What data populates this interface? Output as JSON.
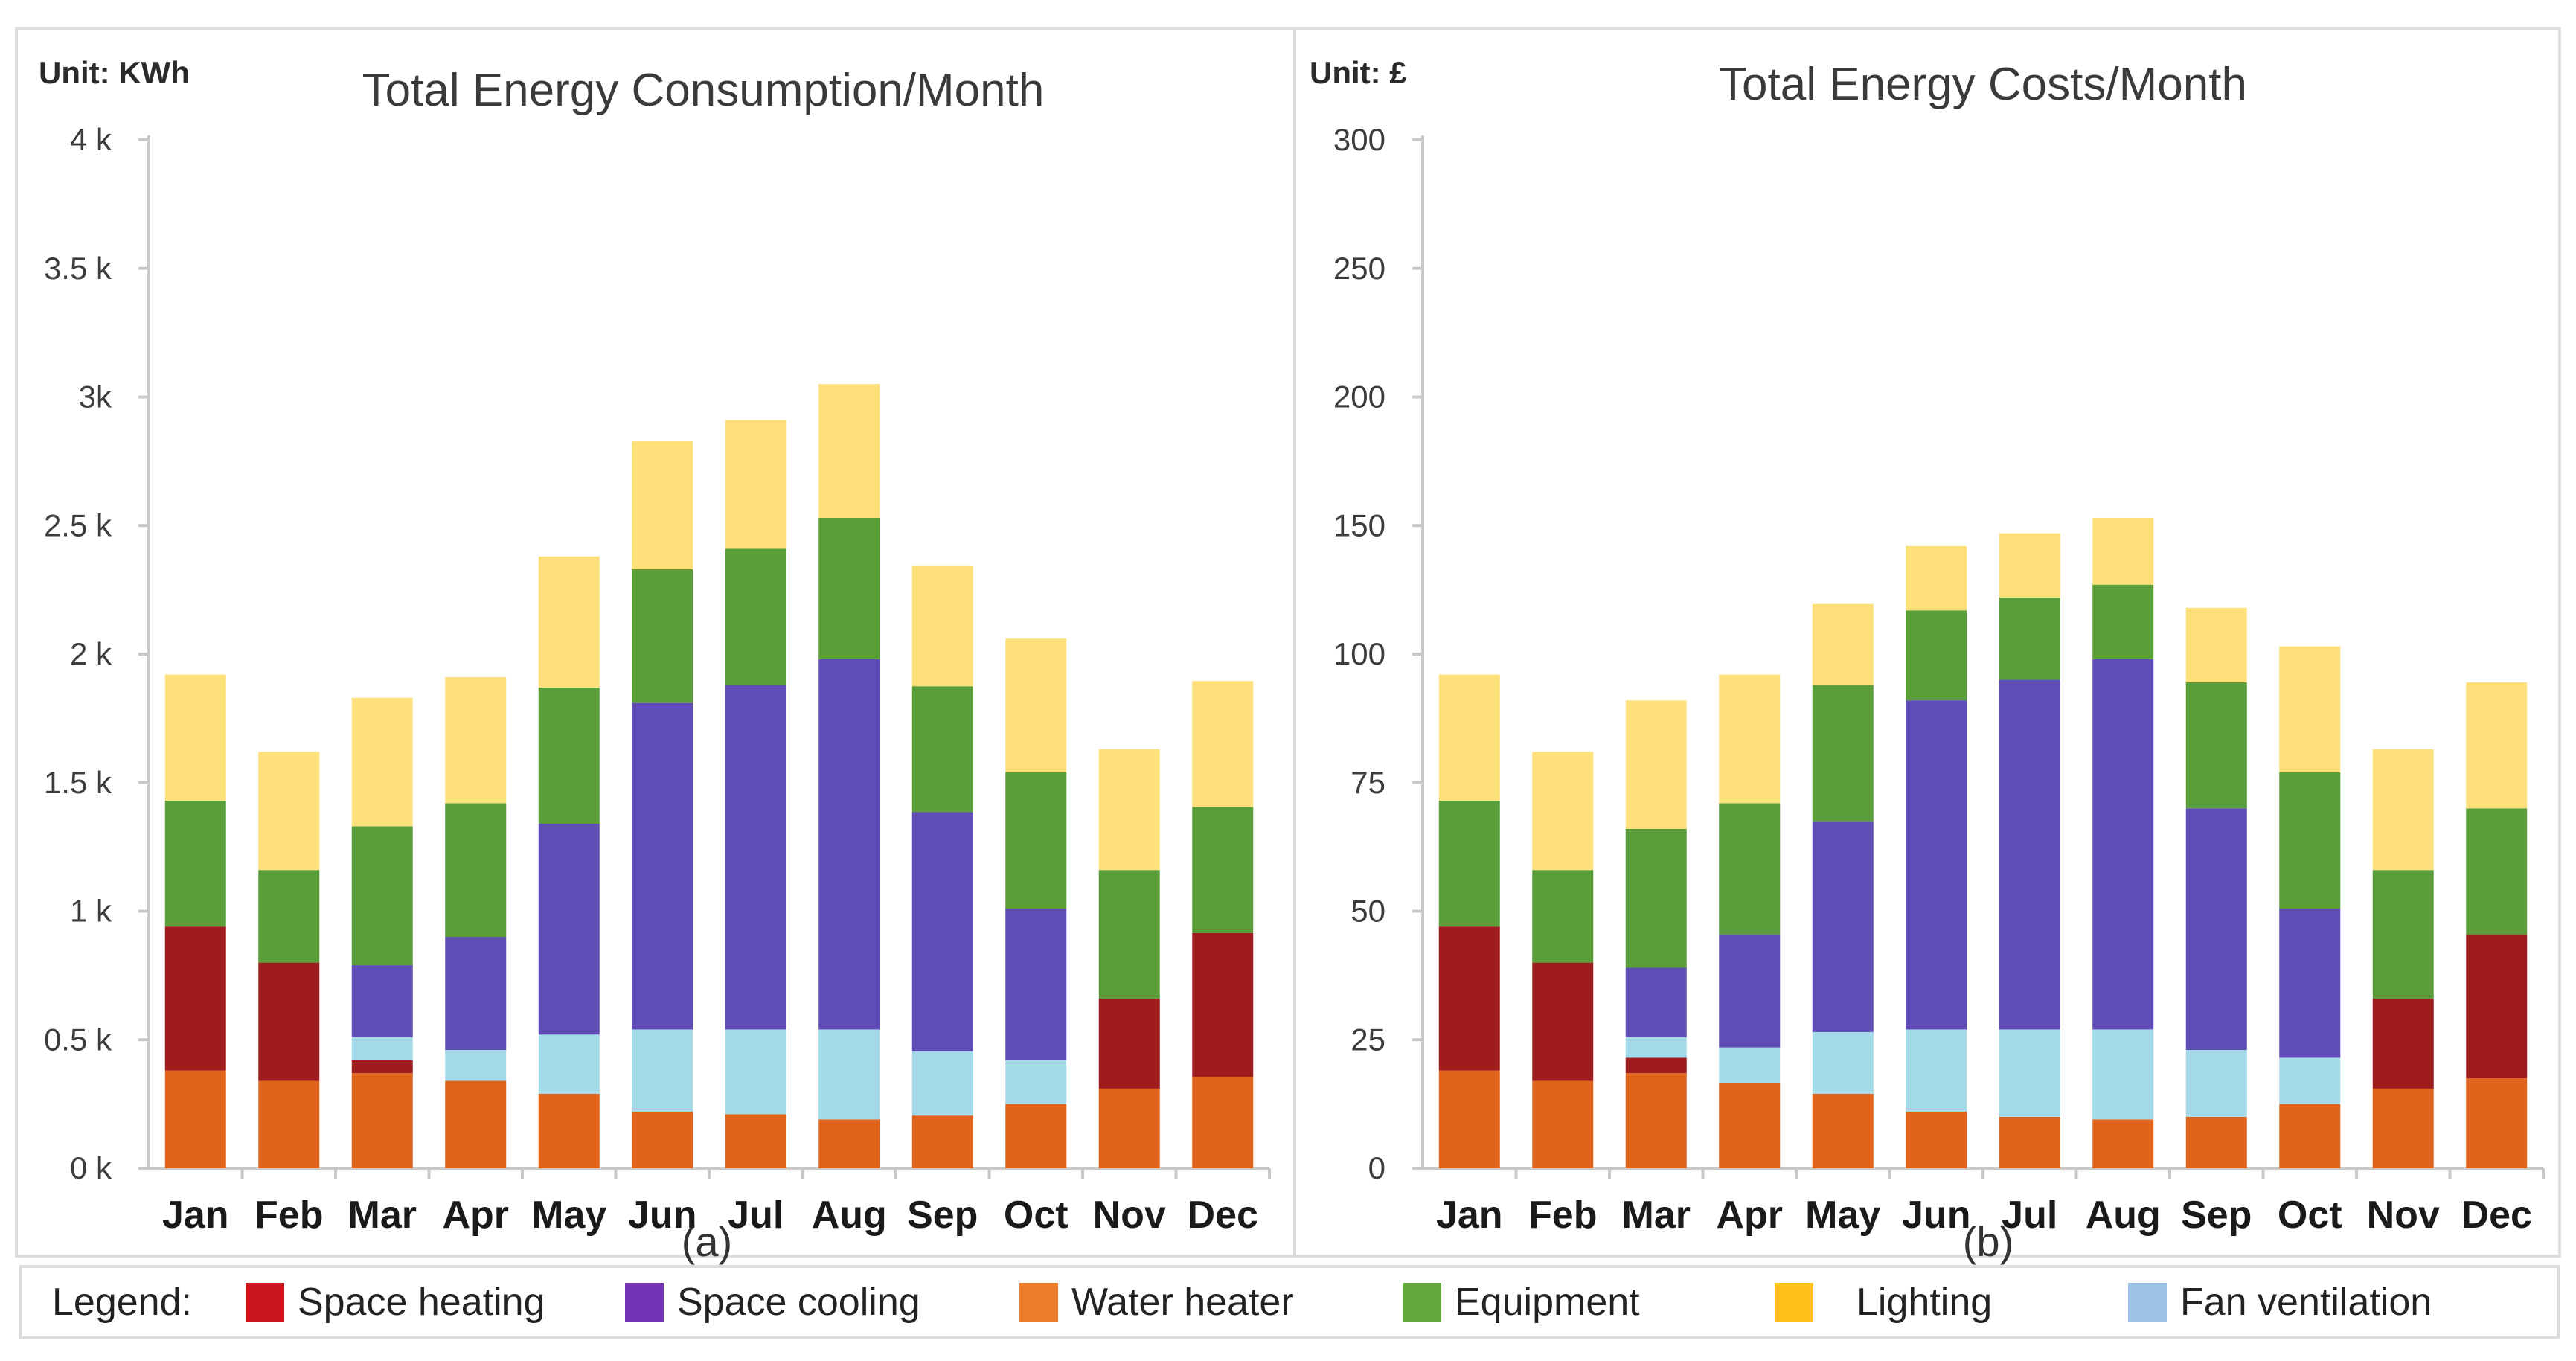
{
  "legend": {
    "title": "Legend:",
    "items": [
      {
        "key": "heating",
        "label": "Space heating",
        "color": "#c8141a"
      },
      {
        "key": "cooling",
        "label": "Space cooling",
        "color": "#7533b5"
      },
      {
        "key": "water",
        "label": "Water heater",
        "color": "#f07d2a"
      },
      {
        "key": "equipment",
        "label": "Equipment",
        "color": "#63a83c"
      },
      {
        "key": "lighting",
        "label": "Lighting",
        "color": "#ffc21a"
      },
      {
        "key": "fan",
        "label": "Fan ventilation",
        "color": "#9cc3e6"
      }
    ]
  },
  "bar_colors": {
    "water": "#e1641c",
    "heating": "#9e1c1e",
    "fan": "#a4d9e8",
    "cooling": "#5f4cb4",
    "equipment": "#5a9e3a",
    "lighting": "#fde07a"
  },
  "chart_data": [
    {
      "id": "a",
      "type": "bar",
      "stacked": true,
      "title": "Total Energy Consumption/Month",
      "unit_label": "Unit: KWh",
      "sublabel": "(a)",
      "ylim": [
        0,
        4000
      ],
      "yticks": [
        0,
        500,
        1000,
        1500,
        2000,
        2500,
        3000,
        3500,
        4000
      ],
      "ytick_labels": [
        "0 k",
        "0.5 k",
        "1 k",
        "1.5 k",
        "2 k",
        "2.5 k",
        "3k",
        "3.5 k",
        "4 k"
      ],
      "categories": [
        "Jan",
        "Feb",
        "Mar",
        "Apr",
        "May",
        "Jun",
        "Jul",
        "Aug",
        "Sep",
        "Oct",
        "Nov",
        "Dec"
      ],
      "series": [
        {
          "name": "Water heater",
          "key": "water",
          "values": [
            380,
            340,
            370,
            340,
            290,
            220,
            210,
            190,
            205,
            250,
            310,
            355
          ]
        },
        {
          "name": "Space heating",
          "key": "heating",
          "values": [
            560,
            460,
            50,
            0,
            0,
            0,
            0,
            0,
            0,
            0,
            350,
            560
          ]
        },
        {
          "name": "Fan ventilation",
          "key": "fan",
          "values": [
            0,
            0,
            90,
            120,
            230,
            320,
            330,
            350,
            250,
            170,
            0,
            0
          ]
        },
        {
          "name": "Space cooling",
          "key": "cooling",
          "values": [
            0,
            0,
            280,
            440,
            820,
            1270,
            1340,
            1440,
            930,
            590,
            0,
            0
          ]
        },
        {
          "name": "Equipment",
          "key": "equipment",
          "values": [
            490,
            360,
            540,
            520,
            530,
            520,
            530,
            550,
            490,
            530,
            500,
            490
          ]
        },
        {
          "name": "Lighting",
          "key": "lighting",
          "values": [
            490,
            460,
            500,
            490,
            510,
            500,
            500,
            520,
            470,
            520,
            470,
            490
          ]
        }
      ]
    },
    {
      "id": "b",
      "type": "bar",
      "stacked": true,
      "title": "Total Energy Costs/Month",
      "unit_label": "Unit: £",
      "sublabel": "(b)",
      "ylim": [
        0,
        300
      ],
      "yticks": [
        0,
        25,
        50,
        75,
        100,
        150,
        200,
        250,
        300
      ],
      "ytick_labels": [
        "0",
        "25",
        "50",
        "75",
        "100",
        "150",
        "200",
        "250",
        "300"
      ],
      "categories": [
        "Jan",
        "Feb",
        "Mar",
        "Apr",
        "May",
        "Jun",
        "Jul",
        "Aug",
        "Sep",
        "Oct",
        "Nov",
        "Dec"
      ],
      "series": [
        {
          "name": "Water heater",
          "key": "water",
          "values": [
            19,
            17,
            18.5,
            16.5,
            14.5,
            11,
            10,
            9.5,
            10,
            12.5,
            15.5,
            17.5
          ]
        },
        {
          "name": "Space heating",
          "key": "heating",
          "values": [
            28,
            23,
            3,
            0,
            0,
            0,
            0,
            0,
            0,
            0,
            17.5,
            28
          ]
        },
        {
          "name": "Fan ventilation",
          "key": "fan",
          "values": [
            0,
            0,
            4,
            7,
            12,
            16,
            17,
            17.5,
            13,
            9,
            0,
            0
          ]
        },
        {
          "name": "Space cooling",
          "key": "cooling",
          "values": [
            0,
            0,
            13.5,
            22,
            41,
            64,
            68,
            72,
            47,
            29,
            0,
            0
          ]
        },
        {
          "name": "Equipment",
          "key": "equipment",
          "values": [
            24.5,
            18,
            27,
            25.5,
            26.5,
            26,
            27,
            28,
            24.5,
            26.5,
            25,
            24.5
          ]
        },
        {
          "name": "Lighting",
          "key": "lighting",
          "values": [
            24.5,
            23,
            25,
            25,
            25.5,
            25,
            25,
            26,
            23.5,
            26,
            23.5,
            24.5
          ]
        }
      ]
    }
  ]
}
